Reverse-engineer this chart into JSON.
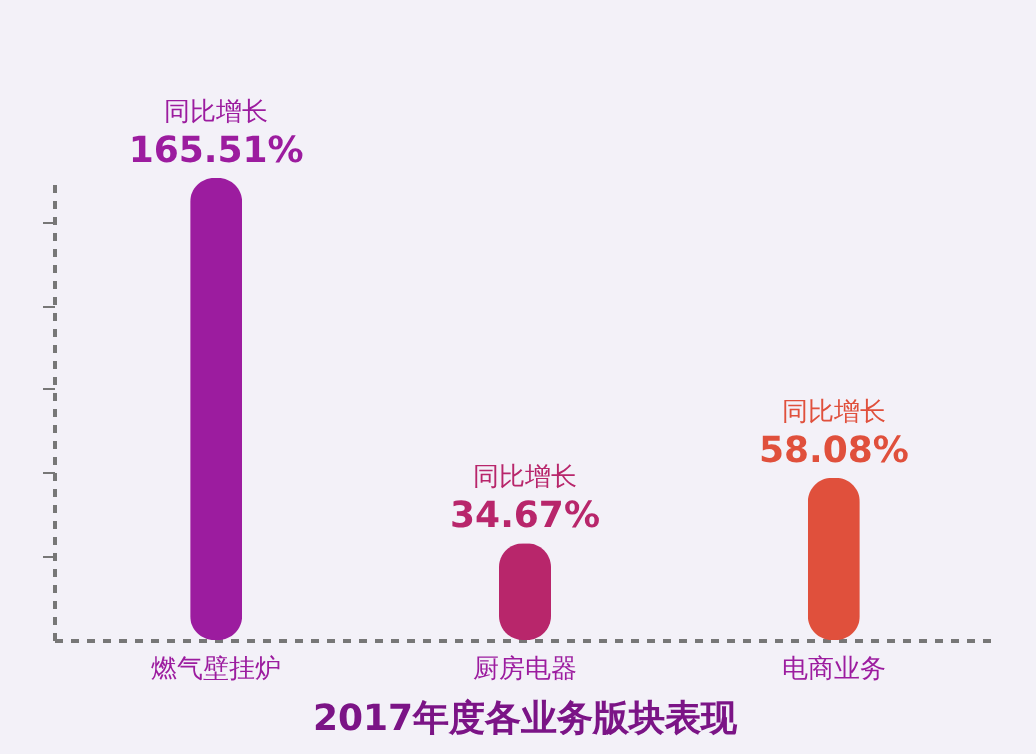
{
  "chart_data": {
    "type": "bar",
    "title": "2017年度各业务版块表现",
    "categories": [
      "燃气壁挂炉",
      "厨房电器",
      "电商业务"
    ],
    "values": [
      165.51,
      34.67,
      58.08
    ],
    "colors": [
      "#9c1c9f",
      "#b8266b",
      "#e0503c"
    ],
    "value_labels": [
      "165.51%",
      "34.67%",
      "58.08%"
    ],
    "annotations": [
      {
        "text": "同比增长",
        "x": "燃气壁挂炉",
        "y": 165.51
      },
      {
        "text": "同比增长",
        "x": "厨房电器",
        "y": 34.67
      },
      {
        "text": "同比增长",
        "x": "电商业务",
        "y": 58.08
      }
    ],
    "grid": false,
    "tick_labels": "x"
  }
}
